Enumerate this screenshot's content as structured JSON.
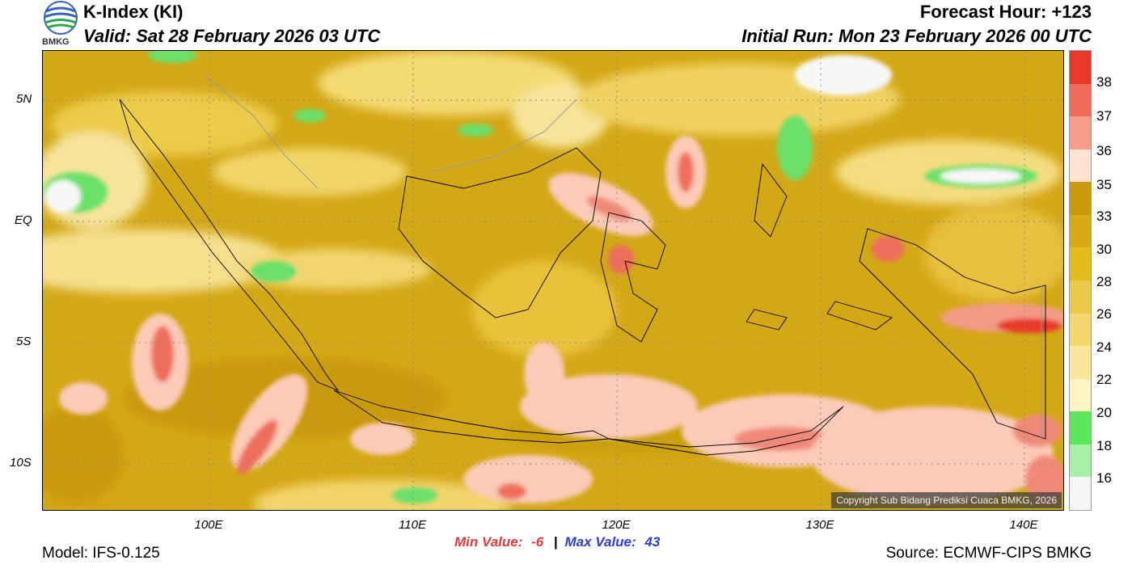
{
  "header": {
    "title": "K-Index (KI)",
    "valid": "Valid: Sat 28 February 2026 03 UTC",
    "forecast_hour": "Forecast Hour: +123",
    "initial_run": "Initial Run: Mon 23 February 2026 00 UTC",
    "logo_text": "BMKG"
  },
  "map": {
    "lat_labels": [
      "5N",
      "EQ",
      "5S",
      "10S"
    ],
    "lon_labels": [
      "100E",
      "110E",
      "120E",
      "130E",
      "140E"
    ],
    "copyright": "Copyright Sub Bidang Prediksi Cuaca BMKG, 2026"
  },
  "colorbar": {
    "labels": [
      "38",
      "37",
      "36",
      "35",
      "33",
      "30",
      "28",
      "26",
      "24",
      "22",
      "20",
      "18",
      "16"
    ],
    "colors": [
      "#e8392b",
      "#f06a58",
      "#f79d8c",
      "#fde3d0",
      "#c99a0a",
      "#d6aa12",
      "#e3bb1a",
      "#ecc94a",
      "#f3d870",
      "#f8e69a",
      "#fdf4c0",
      "#5ce65c",
      "#a7f0a7",
      "#f6f6f6"
    ]
  },
  "stats": {
    "min_label": "Min Value:",
    "min_value": "-6",
    "separator": "|",
    "max_label": "Max Value:",
    "max_value": "43"
  },
  "footer": {
    "model": "Model: IFS-0.125",
    "source": "Source: ECMWF-CIPS BMKG"
  }
}
